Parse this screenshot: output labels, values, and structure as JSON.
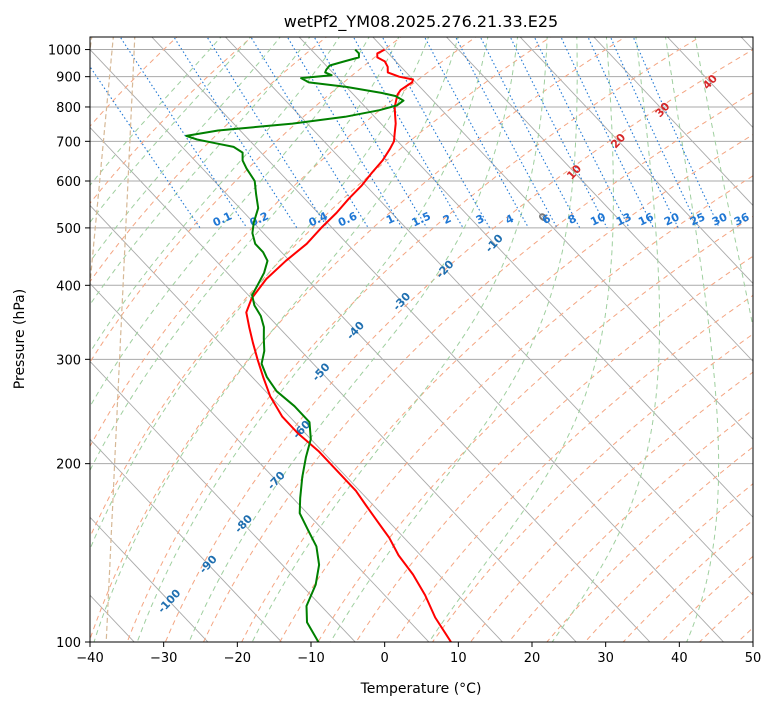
{
  "chart_data": {
    "type": "line",
    "title": "wetPf2_YM08.2025.276.21.33.E25",
    "xlabel": "Temperature (°C)",
    "ylabel": "Pressure (hPa)",
    "xlim": [
      -40,
      50
    ],
    "ylim": [
      1050,
      100
    ],
    "y_scale": "log",
    "skew_deg_per_decade": 76,
    "x_ticks": [
      -40,
      -30,
      -20,
      -10,
      0,
      10,
      20,
      30,
      40,
      50
    ],
    "y_ticks": [
      1000,
      900,
      800,
      700,
      600,
      500,
      400,
      300,
      200,
      100
    ],
    "grid": true,
    "isotherm_labels": [
      "-100",
      "-90",
      "-80",
      "-70",
      "-60",
      "-50",
      "-40",
      "-30",
      "-20",
      "-10",
      "0",
      "10",
      "20",
      "30",
      "40"
    ],
    "isotherm_label_values": [
      -100,
      -90,
      -80,
      -70,
      -60,
      -50,
      -40,
      -30,
      -20,
      -10,
      0,
      10,
      20,
      30,
      40
    ],
    "isotherm_label_pressures": [
      117,
      135,
      158,
      187,
      228,
      285,
      335,
      375,
      425,
      470,
      520,
      620,
      700,
      790,
      880
    ],
    "mixing_ratio_labels": [
      "0.1",
      "0.2",
      "0.4",
      "0.6",
      "1",
      "1.5",
      "2",
      "3",
      "4",
      "6",
      "8",
      "10",
      "13",
      "16",
      "20",
      "25",
      "30",
      "36"
    ],
    "mixing_ratio_label_temps": [
      -22,
      -17,
      -9,
      -5,
      0.8,
      5,
      8.5,
      13,
      17,
      22,
      25.5,
      29,
      32.5,
      35.5,
      39,
      42.5,
      45.5,
      48.5
    ],
    "series": [
      {
        "role": "temperature",
        "color": "#ff0000",
        "p": [
          1000,
          985,
          970,
          955,
          935,
          915,
          900,
          890,
          880,
          870,
          855,
          840,
          820,
          800,
          775,
          750,
          720,
          700,
          680,
          650,
          620,
          590,
          560,
          530,
          500,
          470,
          440,
          410,
          380,
          360,
          340,
          320,
          300,
          280,
          260,
          240,
          225,
          210,
          195,
          180,
          170,
          160,
          150,
          140,
          130,
          120,
          110,
          100
        ],
        "t": [
          0,
          -1.5,
          -2,
          -1.5,
          -1.8,
          -2.5,
          -1.5,
          0,
          -0.5,
          -1.5,
          -3,
          -4,
          -5,
          -6,
          -7,
          -8,
          -9.5,
          -10.5,
          -12,
          -14.5,
          -17.5,
          -20.5,
          -24,
          -27.5,
          -31.5,
          -35.5,
          -40.5,
          -45.5,
          -50,
          -52.5,
          -54,
          -55.5,
          -57,
          -58.5,
          -60,
          -61,
          -61,
          -60.5,
          -60.5,
          -60.5,
          -61,
          -61.5,
          -62,
          -63,
          -63.5,
          -64.5,
          -66,
          -67
        ]
      },
      {
        "role": "dewpoint",
        "color": "#008000",
        "p": [
          1000,
          985,
          970,
          955,
          940,
          925,
          915,
          905,
          895,
          880,
          865,
          855,
          845,
          835,
          820,
          805,
          790,
          770,
          750,
          730,
          715,
          705,
          695,
          685,
          670,
          650,
          630,
          600,
          570,
          540,
          510,
          490,
          470,
          455,
          440,
          420,
          400,
          385,
          370,
          355,
          340,
          325,
          310,
          295,
          280,
          265,
          250,
          235,
          220,
          205,
          190,
          175,
          165,
          155,
          145,
          135,
          125,
          115,
          108,
          100
        ],
        "t": [
          -4,
          -4,
          -4.5,
          -7,
          -9.5,
          -10.5,
          -11,
          -10.5,
          -15,
          -14.5,
          -10,
          -8,
          -6,
          -4.5,
          -4,
          -5.5,
          -8.5,
          -14,
          -22,
          -33,
          -38,
          -37,
          -35,
          -33,
          -32.5,
          -33.5,
          -34,
          -34.5,
          -36,
          -37.5,
          -40,
          -41.5,
          -42.5,
          -42.5,
          -43,
          -45,
          -47.5,
          -49.5,
          -50.5,
          -51,
          -52,
          -53.5,
          -55,
          -57,
          -58,
          -58.5,
          -58,
          -58,
          -60,
          -63,
          -66,
          -69,
          -71,
          -72,
          -73,
          -75,
          -78,
          -82,
          -84,
          -85
        ]
      }
    ]
  },
  "colors": {
    "isobar": "#aaaaaa",
    "isotherm": "#aaaaaa",
    "dry_adiabat": "#f4a582",
    "moist_adiabat": "#9fcf9f",
    "mixing_ratio": "#1f77d4",
    "isotherm_label_cold": "#1f6fb0",
    "isotherm_label_zero": "#777777",
    "isotherm_label_warm": "#d62728",
    "freezing_curve": "#d6b896"
  }
}
